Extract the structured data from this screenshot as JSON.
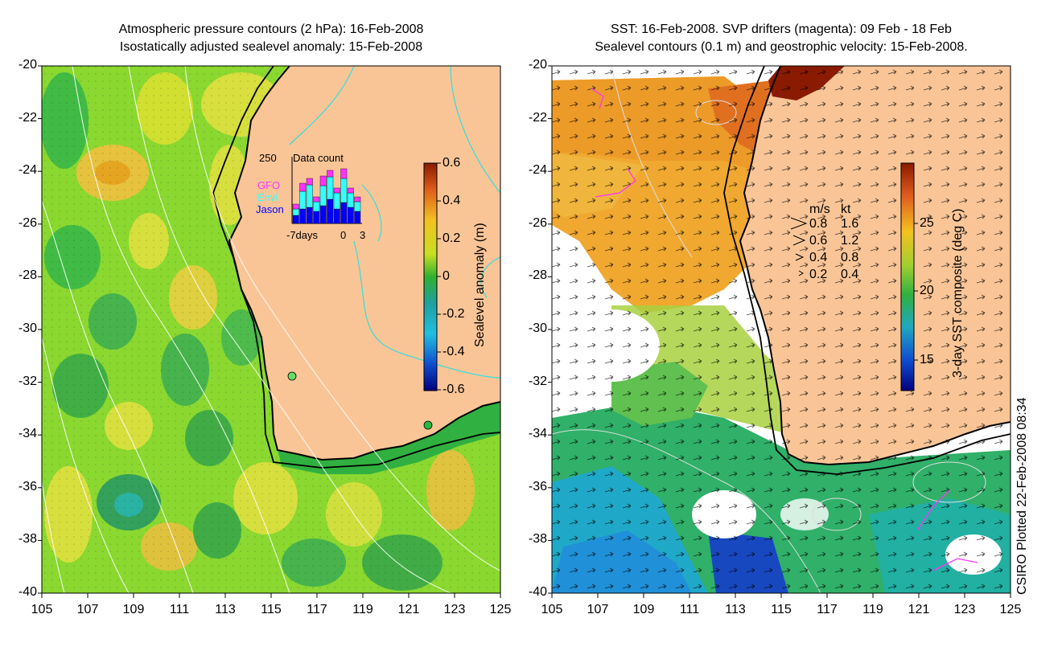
{
  "left_panel": {
    "title_line1": "Atmospheric pressure contours (2 hPa): 16-Feb-2008",
    "title_line2": "Isostatically adjusted sealevel anomaly: 15-Feb-2008",
    "colorbar_label": "Sealevel anomaly (m)",
    "colorbar_ticks": [
      "0.6",
      "0.4",
      "0.2",
      "0",
      "-0.2",
      "-0.4",
      "-0.6"
    ],
    "inset": {
      "title": "Data count",
      "ymax_label": "250",
      "legend": [
        "GFO",
        "Envi",
        "Jason"
      ],
      "legend_colors": [
        "#ff33ff",
        "#33ffff",
        "#0000ff"
      ],
      "x_labels": [
        "-7days",
        "0",
        "3"
      ]
    }
  },
  "right_panel": {
    "title_line1": "SST: 16-Feb-2008. SVP drifters (magenta): 09 Feb - 18 Feb",
    "title_line2": "Sealevel contours (0.1 m) and geostrophic velocity: 15-Feb-2008.",
    "colorbar_label": "3-day SST composite (deg C)",
    "colorbar_ticks": [
      "25",
      "20",
      "15"
    ],
    "velocity_legend": {
      "header_ms": "m/s",
      "header_kt": "kt",
      "rows": [
        {
          "ms": "0.8",
          "kt": "1.6"
        },
        {
          "ms": "0.6",
          "kt": "1.2"
        },
        {
          "ms": "0.4",
          "kt": "0.8"
        },
        {
          "ms": "0.2",
          "kt": "0.4"
        }
      ]
    }
  },
  "axes": {
    "y_ticks": [
      "-20",
      "-22",
      "-24",
      "-26",
      "-28",
      "-30",
      "-32",
      "-34",
      "-36",
      "-38",
      "-40"
    ],
    "x_ticks": [
      "105",
      "107",
      "109",
      "111",
      "113",
      "115",
      "117",
      "119",
      "121",
      "123",
      "125"
    ]
  },
  "footer": {
    "plotted_text": "CSIRO Plotted 22-Feb-2008 08:34"
  },
  "colors": {
    "land": "#f9c597",
    "coast_line": "#000000",
    "pressure_contours": "#ffffff",
    "cyan_contours": "#33dddd",
    "sla_mid": "#7fd62a",
    "sla_high": "#e9e03a",
    "sla_low": "#2aa84a"
  }
}
